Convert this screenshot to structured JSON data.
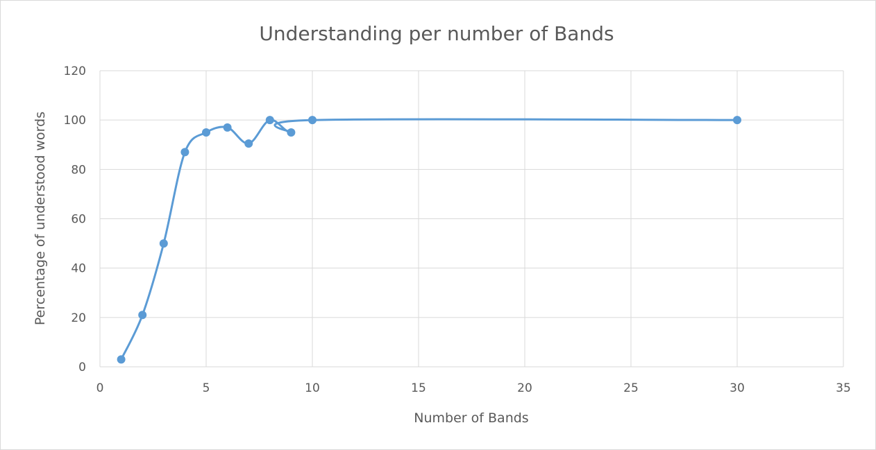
{
  "chart_data": {
    "type": "scatter",
    "title": "Understanding per number of Bands",
    "xlabel": "Number  of Bands",
    "ylabel": "Percentage of understood words",
    "xlim": [
      0,
      35
    ],
    "ylim": [
      0,
      120
    ],
    "x_ticks": [
      0,
      5,
      10,
      15,
      20,
      25,
      30,
      35
    ],
    "y_ticks": [
      0,
      20,
      40,
      60,
      80,
      100,
      120
    ],
    "grid": true,
    "smoothed_line": true,
    "markers": true,
    "series": [
      {
        "color": "#5b9bd5",
        "points": [
          {
            "x": 1,
            "y": 3
          },
          {
            "x": 2,
            "y": 21
          },
          {
            "x": 3,
            "y": 50
          },
          {
            "x": 4,
            "y": 87
          },
          {
            "x": 5,
            "y": 95
          },
          {
            "x": 6,
            "y": 97
          },
          {
            "x": 7,
            "y": 90.5
          },
          {
            "x": 8,
            "y": 100
          },
          {
            "x": 9,
            "y": 95
          },
          {
            "x": 10,
            "y": 100
          },
          {
            "x": 30,
            "y": 100
          }
        ]
      }
    ]
  }
}
